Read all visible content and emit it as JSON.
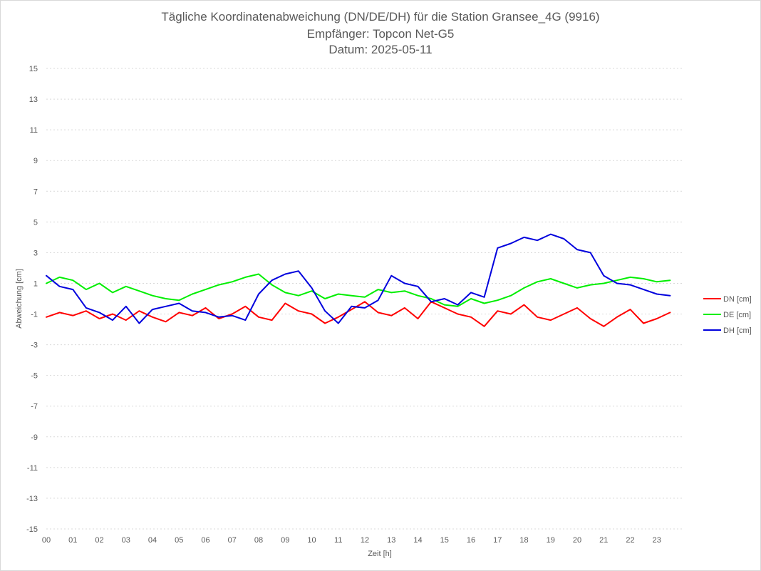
{
  "chart_data": {
    "type": "line",
    "title_lines": [
      "Tägliche Koordinatenabweichung (DN/DE/DH) für die Station Gransee_4G (9916)",
      "Empfänger: Topcon Net-G5",
      "Datum: 2025-05-11"
    ],
    "xlabel": "Zeit [h]",
    "ylabel": "Abweichung [cm]",
    "xlim": [
      0,
      24
    ],
    "ylim": [
      -15,
      15
    ],
    "x_ticks": [
      "00",
      "01",
      "02",
      "03",
      "04",
      "05",
      "06",
      "07",
      "08",
      "09",
      "10",
      "11",
      "12",
      "13",
      "14",
      "15",
      "16",
      "17",
      "18",
      "19",
      "20",
      "21",
      "22",
      "23"
    ],
    "y_ticks": [
      15,
      13,
      11,
      9,
      7,
      5,
      3,
      1,
      -1,
      -3,
      -5,
      -7,
      -9,
      -11,
      -13,
      -15
    ],
    "grid": true,
    "legend_position": "right",
    "x_step_hours": 0.5,
    "series": [
      {
        "name": "DN [cm]",
        "color": "#ff0000",
        "values": [
          -1.2,
          -0.9,
          -1.1,
          -0.8,
          -1.3,
          -1.0,
          -1.4,
          -0.8,
          -1.2,
          -1.5,
          -0.9,
          -1.1,
          -0.6,
          -1.3,
          -1.0,
          -0.5,
          -1.2,
          -1.4,
          -0.3,
          -0.8,
          -1.0,
          -1.6,
          -1.2,
          -0.7,
          -0.2,
          -0.9,
          -1.1,
          -0.6,
          -1.3,
          -0.2,
          -0.6,
          -1.0,
          -1.2,
          -1.8,
          -0.8,
          -1.0,
          -0.4,
          -1.2,
          -1.4,
          -1.0,
          -0.6,
          -1.3,
          -1.8,
          -1.2,
          -0.7,
          -1.6,
          -1.3,
          -0.9
        ]
      },
      {
        "name": "DE [cm]",
        "color": "#00ee00",
        "values": [
          1.0,
          1.4,
          1.2,
          0.6,
          1.0,
          0.4,
          0.8,
          0.5,
          0.2,
          0.0,
          -0.1,
          0.3,
          0.6,
          0.9,
          1.1,
          1.4,
          1.6,
          0.9,
          0.4,
          0.2,
          0.5,
          0.0,
          0.3,
          0.2,
          0.1,
          0.6,
          0.4,
          0.5,
          0.2,
          0.0,
          -0.4,
          -0.5,
          0.0,
          -0.3,
          -0.1,
          0.2,
          0.7,
          1.1,
          1.3,
          1.0,
          0.7,
          0.9,
          1.0,
          1.2,
          1.4,
          1.3,
          1.1,
          1.2
        ]
      },
      {
        "name": "DH [cm]",
        "color": "#0000dd",
        "values": [
          1.5,
          0.8,
          0.6,
          -0.6,
          -0.9,
          -1.4,
          -0.5,
          -1.6,
          -0.7,
          -0.5,
          -0.3,
          -0.8,
          -0.9,
          -1.2,
          -1.1,
          -1.4,
          0.3,
          1.2,
          1.6,
          1.8,
          0.7,
          -0.8,
          -1.6,
          -0.5,
          -0.6,
          -0.1,
          1.5,
          1.0,
          0.8,
          -0.2,
          0.0,
          -0.4,
          0.4,
          0.1,
          3.3,
          3.6,
          4.0,
          3.8,
          4.2,
          3.9,
          3.2,
          3.0,
          1.5,
          1.0,
          0.9,
          0.6,
          0.3,
          0.2
        ]
      }
    ]
  }
}
